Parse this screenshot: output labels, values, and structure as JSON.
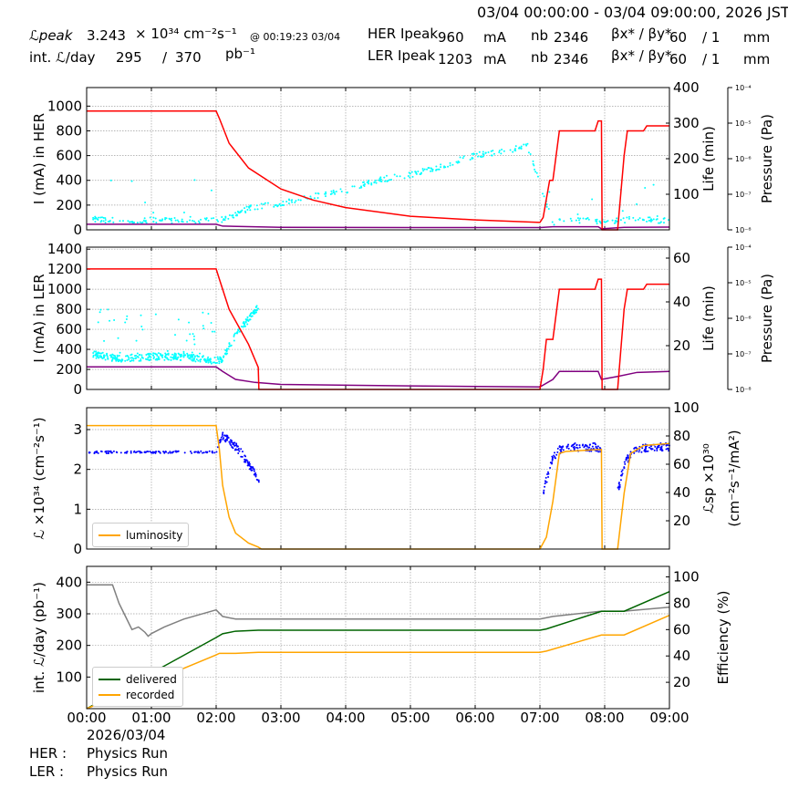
{
  "header": {
    "time_range": "03/04 00:00:00 - 03/04 09:00:00, 2026 JST",
    "lpeak_label": "ℒpeak",
    "lpeak_value": "3.243",
    "lpeak_unit": "× 10³⁴ cm⁻²s⁻¹",
    "lpeak_time": "@ 00:19:23 03/04",
    "intl_label": "int. ℒ/day",
    "intl_recorded": "295",
    "intl_sep": "/",
    "intl_delivered": "370",
    "intl_unit": "pb⁻¹",
    "her_label": "HER Ipeak",
    "her_ipeak": "960",
    "her_unit": "mA",
    "ler_label": "LER Ipeak",
    "ler_ipeak": "1203",
    "ler_unit": "mA",
    "nb_label": "nb",
    "her_nb": "2346",
    "ler_nb": "2346",
    "beta_label": "βx* / βy*",
    "her_beta_x": "60",
    "her_beta_y": "/ 1",
    "ler_beta_x": "60",
    "ler_beta_y": "/ 1",
    "beta_unit": "mm"
  },
  "footer": {
    "date": "2026/03/04",
    "her_label": "HER :",
    "her_status": "Physics Run",
    "ler_label": "LER :",
    "ler_status": "Physics Run"
  },
  "colors": {
    "current": "#ff0000",
    "lifetime": "#00ffff",
    "pressure": "#800080",
    "luminosity": "#ffa500",
    "specific": "#0000ff",
    "delivered": "#006400",
    "recorded": "#ffa500",
    "efficiency": "#808080",
    "grid": "#a0a0a0"
  },
  "chart_data": [
    {
      "type": "line",
      "name": "her_panel",
      "ylabel": "I (mA) in HER",
      "ylabel_right": "Life (min)",
      "ylabel_right2": "Pressure (Pa)",
      "ylim": [
        0,
        1150
      ],
      "yticks": [
        0,
        200,
        400,
        600,
        800,
        1000
      ],
      "ylim_right": [
        0,
        400
      ],
      "yticks_right": [
        100,
        200,
        300,
        400
      ],
      "pressure_ticks": [
        "10⁻⁸",
        "10⁻⁷",
        "10⁻⁶",
        "10⁻⁵",
        "10⁻⁴"
      ],
      "series": [
        {
          "key": "current",
          "x": [
            0,
            2.0,
            2.05,
            2.2,
            2.5,
            3.0,
            3.5,
            4.0,
            5.0,
            6.0,
            7.0,
            7.05,
            7.15,
            7.2,
            7.3,
            7.35,
            7.85,
            7.9,
            7.95,
            7.96,
            8.2,
            8.3,
            8.35,
            8.6,
            8.65,
            9.0
          ],
          "y": [
            960,
            960,
            900,
            700,
            500,
            330,
            240,
            180,
            110,
            80,
            60,
            100,
            400,
            400,
            800,
            800,
            800,
            880,
            880,
            0,
            0,
            600,
            800,
            800,
            840,
            840
          ]
        },
        {
          "key": "pressure",
          "x": [
            0,
            2.0,
            2.1,
            3.0,
            5.0,
            7.0,
            7.2,
            7.9,
            7.95,
            8.3,
            9.0
          ],
          "y": [
            45,
            45,
            30,
            20,
            18,
            18,
            25,
            25,
            8,
            20,
            22
          ]
        },
        {
          "key": "lifetime",
          "x": [
            0.1,
            0.5,
            1.0,
            1.5,
            2.0,
            2.1,
            2.5,
            3.0,
            3.5,
            4.0,
            4.5,
            5.0,
            5.5,
            6.0,
            6.5,
            6.8,
            7.2,
            7.5,
            8.0,
            8.5,
            9.0
          ],
          "y": [
            30,
            25,
            28,
            26,
            30,
            28,
            60,
            75,
            95,
            110,
            140,
            155,
            180,
            210,
            220,
            240,
            20,
            28,
            25,
            30,
            25
          ]
        }
      ]
    },
    {
      "type": "line",
      "name": "ler_panel",
      "ylabel": "I (mA) in LER",
      "ylabel_right": "Life (min)",
      "ylabel_right2": "Pressure (Pa)",
      "ylim": [
        0,
        1420
      ],
      "yticks": [
        0,
        200,
        400,
        600,
        800,
        1000,
        1200,
        1400
      ],
      "ylim_right": [
        0,
        65
      ],
      "yticks_right": [
        20,
        40,
        60
      ],
      "pressure_ticks": [
        "10⁻⁸",
        "10⁻⁷",
        "10⁻⁶",
        "10⁻⁵",
        "10⁻⁴"
      ],
      "series": [
        {
          "key": "current",
          "x": [
            0,
            2.0,
            2.05,
            2.2,
            2.5,
            2.65,
            2.66,
            7.0,
            7.05,
            7.1,
            7.2,
            7.3,
            7.35,
            7.85,
            7.9,
            7.95,
            7.96,
            8.2,
            8.3,
            8.35,
            8.6,
            8.65,
            9.0
          ],
          "y": [
            1203,
            1203,
            1100,
            800,
            450,
            220,
            0,
            0,
            200,
            500,
            500,
            1000,
            1000,
            1000,
            1100,
            1100,
            0,
            0,
            800,
            1000,
            1000,
            1050,
            1050
          ]
        },
        {
          "key": "pressure",
          "x": [
            0,
            2.0,
            2.1,
            2.3,
            2.6,
            3.0,
            5.0,
            7.0,
            7.2,
            7.3,
            7.9,
            7.95,
            8.2,
            8.5,
            9.0
          ],
          "y": [
            225,
            225,
            180,
            100,
            70,
            50,
            35,
            25,
            100,
            180,
            180,
            100,
            130,
            170,
            180
          ]
        },
        {
          "key": "lifetime",
          "x": [
            0.1,
            0.5,
            1.0,
            1.5,
            2.0,
            2.1,
            2.3,
            2.5,
            2.65
          ],
          "y": [
            16,
            14,
            15,
            15,
            13,
            14,
            25,
            32,
            38
          ]
        }
      ]
    },
    {
      "type": "line",
      "name": "lumi_panel",
      "ylabel": "ℒ ×10³⁴ (cm⁻²s⁻¹)",
      "ylabel_right": "ℒsp ×10³⁰",
      "ylabel_right2": "(cm⁻²s⁻¹/mA²)",
      "ylim": [
        0,
        3.55
      ],
      "yticks": [
        0,
        1,
        2,
        3
      ],
      "ylim_right": [
        0,
        100
      ],
      "yticks_right": [
        20,
        40,
        60,
        80,
        100
      ],
      "legend": [
        "luminosity"
      ],
      "series": [
        {
          "key": "luminosity",
          "name": "luminosity",
          "x": [
            0,
            2.0,
            2.05,
            2.1,
            2.2,
            2.3,
            2.5,
            2.65,
            2.7,
            7.0,
            7.1,
            7.2,
            7.3,
            7.4,
            7.9,
            7.95,
            7.96,
            8.2,
            8.3,
            8.4,
            8.6,
            9.0
          ],
          "y": [
            3.1,
            3.1,
            2.5,
            1.6,
            0.8,
            0.4,
            0.15,
            0.05,
            0,
            0,
            0.3,
            1.2,
            2.4,
            2.45,
            2.5,
            2.5,
            0,
            0,
            1.4,
            2.4,
            2.6,
            2.65
          ]
        },
        {
          "key": "specific",
          "x": [
            0,
            0.5,
            1.0,
            1.5,
            2.0,
            2.1,
            2.2,
            2.35,
            2.5,
            2.65,
            7.05,
            7.2,
            7.35,
            7.6,
            7.9,
            8.2,
            8.3,
            8.45,
            8.7,
            9.0
          ],
          "y": [
            68.5,
            68.5,
            68.5,
            68.5,
            68.5,
            80,
            77,
            70,
            60,
            50,
            40,
            65,
            72,
            72,
            72,
            40,
            60,
            70,
            72,
            72
          ]
        }
      ]
    },
    {
      "type": "line",
      "name": "intlumi_panel",
      "ylabel": "int. ℒ/day (pb⁻¹)",
      "ylabel_right": "Efficiency (%)",
      "ylim": [
        0,
        450
      ],
      "yticks": [
        100,
        200,
        300,
        400
      ],
      "ylim_right": [
        0,
        108
      ],
      "yticks_right": [
        20,
        40,
        60,
        80,
        100
      ],
      "legend": [
        "delivered",
        "recorded"
      ],
      "series": [
        {
          "key": "delivered",
          "name": "delivered",
          "x": [
            0,
            2.0,
            2.1,
            2.3,
            2.65,
            7.0,
            7.1,
            7.95,
            8.3,
            9.0
          ],
          "y": [
            0,
            225,
            237,
            245,
            248,
            248,
            252,
            308,
            308,
            370
          ]
        },
        {
          "key": "recorded",
          "name": "recorded",
          "x": [
            0,
            2.0,
            2.05,
            2.3,
            2.65,
            7.0,
            7.1,
            7.95,
            8.3,
            9.0
          ],
          "y": [
            0,
            170,
            175,
            175,
            178,
            178,
            182,
            233,
            233,
            295
          ]
        },
        {
          "key": "efficiency",
          "x": [
            0,
            0.4,
            0.5,
            0.6,
            0.7,
            0.8,
            0.9,
            0.95,
            1.0,
            1.2,
            1.5,
            2.0,
            2.1,
            2.3,
            2.6,
            7.0,
            7.2,
            7.95,
            8.3,
            9.0
          ],
          "y": [
            94,
            94,
            80,
            70,
            60,
            62,
            58,
            55,
            57,
            62,
            68,
            75,
            70,
            68,
            68,
            68,
            70,
            74,
            74,
            77
          ]
        }
      ]
    }
  ],
  "xaxis": {
    "ticks": [
      "00:00",
      "01:00",
      "02:00",
      "03:00",
      "04:00",
      "05:00",
      "06:00",
      "07:00",
      "08:00",
      "09:00"
    ],
    "range_hours": [
      0,
      9
    ]
  }
}
